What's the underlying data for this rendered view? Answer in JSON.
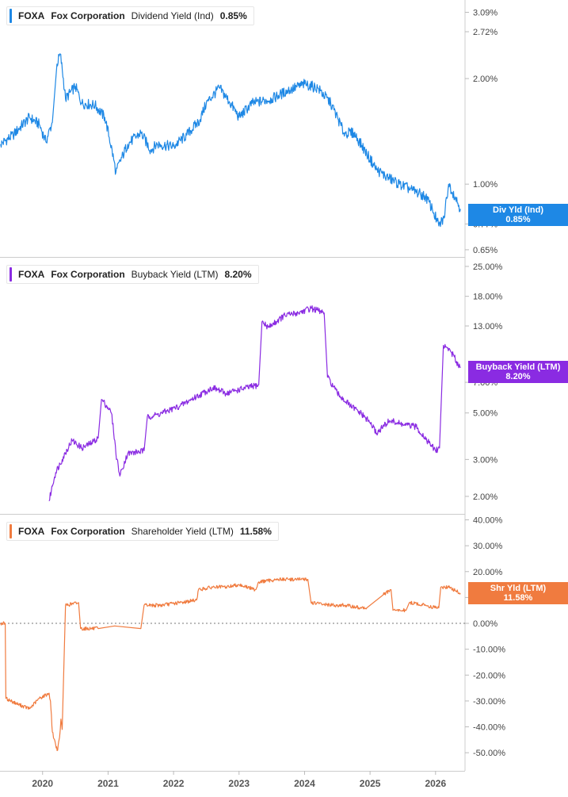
{
  "x_ticks": [
    "2020",
    "2021",
    "2022",
    "2023",
    "2024",
    "2025",
    "2026"
  ],
  "panels": [
    {
      "ticker": "FOXA",
      "company": "Fox Corporation",
      "metric": "Dividend Yield (Ind)",
      "value": "0.85%",
      "color": "#1e88e5",
      "tag_title": "Div Yld (Ind)",
      "tag_value": "0.85%",
      "tick_labels": [
        "3.09%",
        "2.72%",
        "2.00%",
        "1.00%",
        "0.77%",
        "0.65%"
      ]
    },
    {
      "ticker": "FOXA",
      "company": "Fox Corporation",
      "metric": "Buyback Yield (LTM)",
      "value": "8.20%",
      "color": "#8a2be2",
      "tag_title": "Buyback Yield (LTM)",
      "tag_value": "8.20%",
      "tick_labels": [
        "25.00%",
        "18.00%",
        "13.00%",
        "7.00%",
        "5.00%",
        "3.00%",
        "2.00%"
      ]
    },
    {
      "ticker": "FOXA",
      "company": "Fox Corporation",
      "metric": "Shareholder Yield (LTM)",
      "value": "11.58%",
      "color": "#f07b3f",
      "tag_title": "Shr Yld (LTM)",
      "tag_value": "11.58%",
      "tick_labels": [
        "40.00%",
        "30.00%",
        "20.00%",
        "10.00%",
        "0.00%",
        "-10.00%",
        "-20.00%",
        "-30.00%",
        "-40.00%",
        "-50.00%"
      ]
    }
  ],
  "chart_data": [
    {
      "type": "line",
      "title": "FOXA Fox Corporation Dividend Yield (Ind) 0.85%",
      "y_scale": "log",
      "ylim": [
        0.62,
        3.35
      ],
      "xlim": [
        2019.35,
        2026.45
      ],
      "y_ticks": [
        3.09,
        2.72,
        2.0,
        1.0,
        0.77,
        0.65
      ],
      "series": [
        {
          "x": [
            2019.36,
            2019.55,
            2019.8,
            2019.95,
            2020.05,
            2020.15,
            2020.22,
            2020.27,
            2020.35,
            2020.5,
            2020.6,
            2020.8,
            2020.95,
            2021.12,
            2021.3,
            2021.5,
            2021.65,
            2021.75,
            2022.0,
            2022.2,
            2022.4,
            2022.5,
            2022.7,
            2022.85,
            2023.0,
            2023.2,
            2023.5,
            2023.75,
            2024.0,
            2024.2,
            2024.4,
            2024.6,
            2024.75,
            2024.95,
            2025.1,
            2025.25,
            2025.45,
            2025.65,
            2025.85,
            2025.95,
            2026.05,
            2026.13,
            2026.2,
            2026.3,
            2026.38
          ],
          "y": [
            1.3,
            1.38,
            1.55,
            1.48,
            1.32,
            1.5,
            2.2,
            2.35,
            1.75,
            1.9,
            1.7,
            1.68,
            1.55,
            1.08,
            1.3,
            1.4,
            1.25,
            1.3,
            1.28,
            1.38,
            1.52,
            1.7,
            1.88,
            1.72,
            1.55,
            1.7,
            1.75,
            1.85,
            1.93,
            1.88,
            1.7,
            1.4,
            1.4,
            1.22,
            1.1,
            1.05,
            1.0,
            0.96,
            0.92,
            0.85,
            0.76,
            0.8,
            1.0,
            0.92,
            0.85
          ]
        }
      ]
    },
    {
      "type": "line",
      "title": "FOXA Fox Corporation Buyback Yield (LTM) 8.20%",
      "y_scale": "log",
      "ylim": [
        1.65,
        27.5
      ],
      "xlim": [
        2019.35,
        2026.45
      ],
      "y_ticks": [
        25.0,
        18.0,
        13.0,
        7.0,
        5.0,
        3.0,
        2.0
      ],
      "series": [
        {
          "x": [
            2020.1,
            2020.2,
            2020.3,
            2020.45,
            2020.6,
            2020.75,
            2020.85,
            2020.9,
            2021.0,
            2021.05,
            2021.12,
            2021.18,
            2021.3,
            2021.55,
            2021.6,
            2021.75,
            2021.9,
            2022.1,
            2022.4,
            2022.6,
            2022.8,
            2022.95,
            2023.3,
            2023.35,
            2023.45,
            2023.7,
            2023.9,
            2024.1,
            2024.3,
            2024.35,
            2024.5,
            2024.7,
            2024.85,
            2025.0,
            2025.1,
            2025.3,
            2025.5,
            2025.7,
            2025.9,
            2026.0,
            2026.06,
            2026.12,
            2026.22,
            2026.32,
            2026.38
          ],
          "y": [
            1.9,
            2.6,
            3.0,
            3.7,
            3.4,
            3.6,
            3.8,
            5.8,
            5.3,
            5.0,
            3.2,
            2.5,
            3.2,
            3.3,
            4.8,
            4.9,
            5.1,
            5.4,
            6.1,
            6.6,
            6.2,
            6.4,
            6.8,
            13.6,
            12.8,
            14.6,
            15.0,
            15.8,
            15.0,
            7.4,
            6.2,
            5.4,
            5.0,
            4.5,
            4.0,
            4.6,
            4.4,
            4.3,
            3.6,
            3.3,
            3.4,
            10.5,
            10.0,
            8.8,
            8.2
          ]
        }
      ]
    },
    {
      "type": "line",
      "title": "FOXA Fox Corporation Shareholder Yield (LTM) 11.58%",
      "y_scale": "linear",
      "ylim": [
        -57,
        42
      ],
      "xlim": [
        2019.35,
        2026.45
      ],
      "y_ticks": [
        40,
        30,
        20,
        10,
        0,
        -10,
        -20,
        -30,
        -40,
        -50
      ],
      "series": [
        {
          "x": [
            2019.36,
            2019.43,
            2019.44,
            2019.6,
            2019.8,
            2019.95,
            2020.1,
            2020.12,
            2020.15,
            2020.2,
            2020.23,
            2020.26,
            2020.28,
            2020.3,
            2020.35,
            2020.55,
            2020.58,
            2020.85,
            2021.1,
            2021.5,
            2021.55,
            2021.8,
            2022.1,
            2022.35,
            2022.38,
            2022.6,
            2022.8,
            2023.0,
            2023.25,
            2023.3,
            2023.6,
            2023.85,
            2024.05,
            2024.1,
            2024.4,
            2024.6,
            2024.85,
            2024.95,
            2025.2,
            2025.32,
            2025.35,
            2025.55,
            2025.6,
            2025.85,
            2026.0,
            2026.05,
            2026.08,
            2026.2,
            2026.38
          ],
          "y": [
            0,
            0,
            -29,
            -31,
            -33,
            -29,
            -27,
            -30,
            -42,
            -47,
            -49,
            -44,
            -37,
            -41,
            7,
            8,
            -2,
            -2,
            -1,
            -2,
            7,
            7,
            8,
            9,
            13,
            14,
            14,
            15,
            13,
            16,
            17,
            17,
            17,
            8,
            7,
            7,
            6,
            6,
            11,
            13,
            5,
            5,
            8,
            7,
            6,
            6,
            14,
            14,
            11.6
          ]
        }
      ]
    }
  ]
}
